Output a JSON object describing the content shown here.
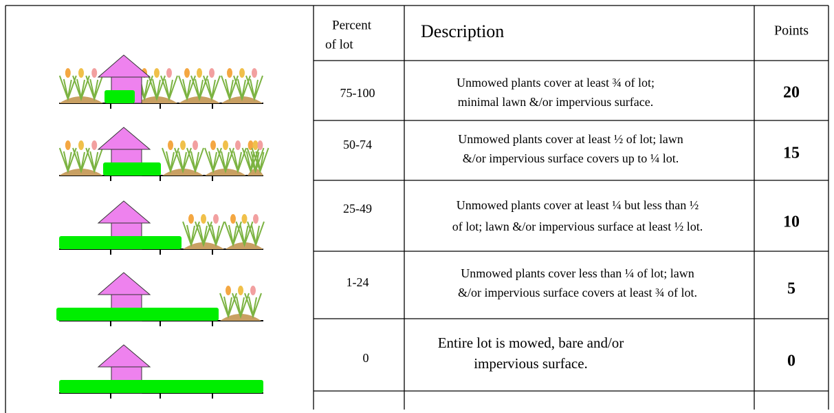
{
  "header": {
    "percent": [
      "Percent",
      "of  lot"
    ],
    "description": "Description",
    "points": "Points"
  },
  "rows": [
    {
      "percent": "75-100",
      "description": [
        "Unmowed plants cover at least ¾ of lot;",
        "minimal lawn &/or impervious surface."
      ],
      "points": "20"
    },
    {
      "percent": "50-74",
      "description": [
        "Unmowed plants cover at least ½ of lot; lawn",
        "&/or impervious surface covers up to ¼ lot."
      ],
      "points": "15"
    },
    {
      "percent": "25-49",
      "description": [
        "Unmowed plants cover at least ¼ but less than ½",
        "of lot; lawn &/or impervious surface at least ½ lot."
      ],
      "points": "10"
    },
    {
      "percent": "1-24",
      "description": [
        "Unmowed plants cover less than ¼ of lot; lawn",
        "&/or impervious surface covers at least ¾ of lot."
      ],
      "points": "5"
    },
    {
      "percent": "0",
      "description": [
        "Entire lot is mowed, bare and/or",
        "impervious surface."
      ],
      "points": "0"
    }
  ]
}
